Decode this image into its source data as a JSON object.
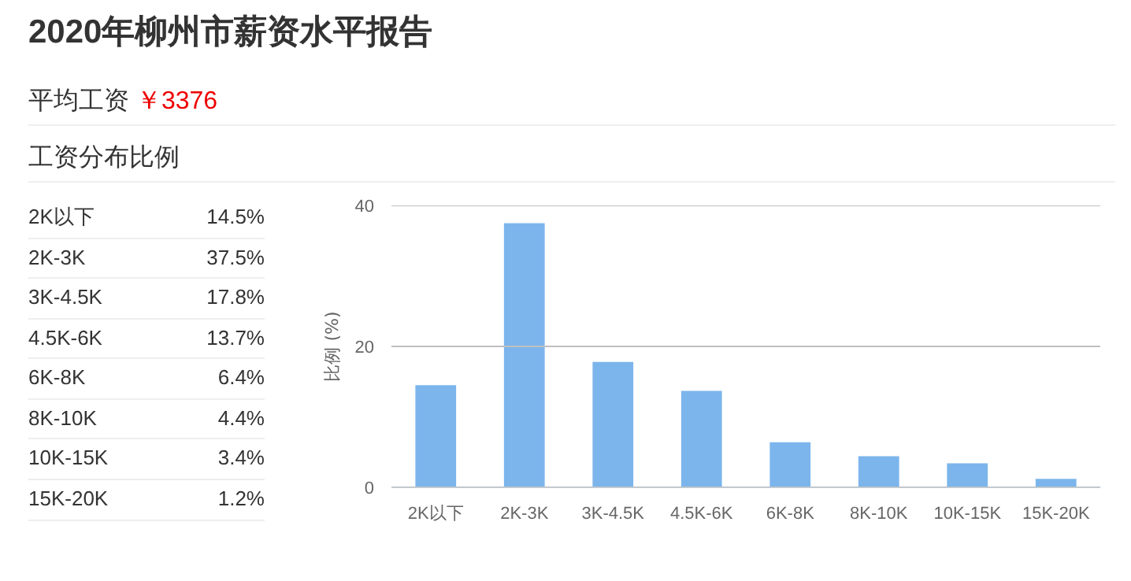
{
  "chart_data": [
    {
      "type": "other",
      "title": "2020年柳州市薪资水平报告",
      "annotations": [
        "平均工资",
        "￥3376",
        "工资分布比例"
      ],
      "categories": [
        "2K以下",
        "2K-3K",
        "3K-4.5K",
        "4.5K-6K",
        "6K-8K",
        "8K-10K",
        "10K-15K",
        "15K-20K"
      ],
      "value_labels": [
        "14.5%",
        "37.5%",
        "17.8%",
        "13.7%",
        "6.4%",
        "4.4%",
        "3.4%",
        "1.2%"
      ]
    },
    {
      "type": "bar",
      "categories": [
        "2K以下",
        "2K-3K",
        "3K-4.5K",
        "4.5K-6K",
        "6K-8K",
        "8K-10K",
        "10K-15K",
        "15K-20K"
      ],
      "values": [
        14.5,
        37.5,
        17.8,
        13.7,
        6.4,
        4.4,
        3.4,
        1.2
      ],
      "color": "#7cb5ec",
      "ylabel": "比例 (%)",
      "ylim": [
        0,
        40
      ],
      "yticks": [
        0,
        20,
        40
      ],
      "grid": "y"
    }
  ]
}
